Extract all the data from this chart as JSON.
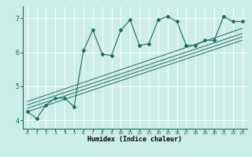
{
  "xlabel": "Humidex (Indice chaleur)",
  "ylabel": "",
  "xlim": [
    -0.5,
    23.5
  ],
  "ylim": [
    3.75,
    7.35
  ],
  "yticks": [
    4,
    5,
    6,
    7
  ],
  "xticks": [
    0,
    1,
    2,
    3,
    4,
    5,
    6,
    7,
    8,
    9,
    10,
    11,
    12,
    13,
    14,
    15,
    16,
    17,
    18,
    19,
    20,
    21,
    22,
    23
  ],
  "bg_color": "#cceee8",
  "line_color": "#1a6b5a",
  "series1_x": [
    0,
    1,
    2,
    3,
    4,
    5,
    6,
    7,
    8,
    9,
    10,
    11,
    12,
    13,
    14,
    15,
    16,
    17,
    18,
    19,
    20,
    21,
    22,
    23
  ],
  "series1_y": [
    4.25,
    4.05,
    4.45,
    4.65,
    4.65,
    4.4,
    6.05,
    6.65,
    5.95,
    5.9,
    6.65,
    6.95,
    6.2,
    6.25,
    6.95,
    7.05,
    6.9,
    6.2,
    6.2,
    6.35,
    6.35,
    7.05,
    6.9,
    6.9
  ],
  "trend_lines": [
    {
      "x": [
        0,
        23
      ],
      "y": [
        4.25,
        6.35
      ]
    },
    {
      "x": [
        0,
        23
      ],
      "y": [
        4.35,
        6.45
      ]
    },
    {
      "x": [
        0,
        23
      ],
      "y": [
        4.45,
        6.55
      ]
    },
    {
      "x": [
        0,
        23
      ],
      "y": [
        4.55,
        6.7
      ]
    }
  ],
  "xlabel_fontsize": 6,
  "ytick_fontsize": 6,
  "xtick_fontsize": 4.5
}
